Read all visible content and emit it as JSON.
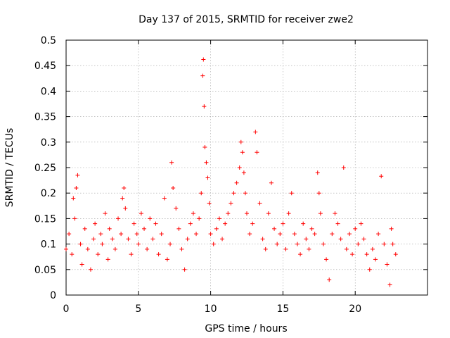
{
  "chart_data": {
    "type": "scatter",
    "title": "Day 137 of 2015, SRMTID for receiver zwe2",
    "xlabel": "GPS time / hours",
    "ylabel": "SRMTID / TECUs",
    "xlim": [
      0,
      25
    ],
    "ylim": [
      0,
      0.5
    ],
    "grid": true,
    "marker": "+",
    "color": "#ff0000",
    "x_ticks": [
      0,
      5,
      10,
      15,
      20
    ],
    "x_tick_labels": [
      "0",
      "5",
      "10",
      "15",
      "20"
    ],
    "y_ticks": [
      0,
      0.05,
      0.1,
      0.15,
      0.2,
      0.25,
      0.3,
      0.35,
      0.4,
      0.45,
      0.5
    ],
    "y_tick_labels": [
      "0",
      "0.05",
      "0.1",
      "0.15",
      "0.2",
      "0.25",
      "0.3",
      "0.35",
      "0.4",
      "0.45",
      "0.5"
    ],
    "series": [
      {
        "name": "SRMTID",
        "x": [
          0.0,
          0.2,
          0.4,
          0.5,
          0.6,
          0.7,
          0.8,
          1.0,
          1.1,
          1.3,
          1.5,
          1.7,
          1.9,
          2.0,
          2.2,
          2.4,
          2.5,
          2.7,
          2.9,
          3.0,
          3.2,
          3.4,
          3.6,
          3.8,
          3.9,
          4.0,
          4.1,
          4.3,
          4.5,
          4.7,
          4.9,
          5.0,
          5.2,
          5.4,
          5.6,
          5.8,
          6.0,
          6.2,
          6.4,
          6.6,
          6.8,
          7.0,
          7.2,
          7.3,
          7.4,
          7.6,
          7.8,
          8.0,
          8.2,
          8.4,
          8.6,
          8.8,
          9.0,
          9.2,
          9.35,
          9.45,
          9.5,
          9.55,
          9.6,
          9.7,
          9.8,
          9.9,
          10.0,
          10.2,
          10.4,
          10.6,
          10.8,
          11.0,
          11.2,
          11.4,
          11.6,
          11.8,
          12.0,
          12.1,
          12.2,
          12.3,
          12.4,
          12.5,
          12.7,
          12.9,
          13.1,
          13.2,
          13.4,
          13.6,
          13.8,
          14.0,
          14.2,
          14.4,
          14.6,
          14.8,
          15.0,
          15.2,
          15.4,
          15.6,
          15.8,
          16.0,
          16.2,
          16.4,
          16.6,
          16.8,
          17.0,
          17.2,
          17.4,
          17.5,
          17.6,
          17.8,
          18.0,
          18.2,
          18.4,
          18.6,
          18.8,
          19.0,
          19.2,
          19.4,
          19.6,
          19.8,
          20.0,
          20.2,
          20.4,
          20.6,
          20.8,
          21.0,
          21.2,
          21.4,
          21.6,
          21.8,
          22.0,
          22.2,
          22.4,
          22.5,
          22.6,
          22.8
        ],
        "y": [
          0.09,
          0.12,
          0.08,
          0.19,
          0.15,
          0.21,
          0.235,
          0.1,
          0.06,
          0.13,
          0.09,
          0.05,
          0.11,
          0.14,
          0.08,
          0.12,
          0.1,
          0.16,
          0.07,
          0.13,
          0.11,
          0.09,
          0.15,
          0.12,
          0.19,
          0.21,
          0.17,
          0.11,
          0.08,
          0.14,
          0.12,
          0.1,
          0.16,
          0.13,
          0.09,
          0.15,
          0.11,
          0.14,
          0.08,
          0.12,
          0.19,
          0.07,
          0.1,
          0.26,
          0.21,
          0.17,
          0.13,
          0.09,
          0.05,
          0.11,
          0.14,
          0.16,
          0.12,
          0.15,
          0.2,
          0.43,
          0.462,
          0.37,
          0.29,
          0.26,
          0.23,
          0.18,
          0.12,
          0.1,
          0.13,
          0.15,
          0.11,
          0.14,
          0.16,
          0.18,
          0.2,
          0.22,
          0.25,
          0.3,
          0.28,
          0.24,
          0.2,
          0.16,
          0.12,
          0.14,
          0.32,
          0.28,
          0.18,
          0.11,
          0.09,
          0.16,
          0.22,
          0.13,
          0.1,
          0.12,
          0.14,
          0.09,
          0.16,
          0.2,
          0.12,
          0.1,
          0.08,
          0.14,
          0.11,
          0.09,
          0.13,
          0.12,
          0.24,
          0.2,
          0.16,
          0.1,
          0.07,
          0.03,
          0.12,
          0.16,
          0.14,
          0.11,
          0.25,
          0.09,
          0.12,
          0.08,
          0.13,
          0.1,
          0.14,
          0.11,
          0.08,
          0.05,
          0.09,
          0.07,
          0.12,
          0.233,
          0.1,
          0.06,
          0.02,
          0.13,
          0.1,
          0.08
        ]
      }
    ]
  }
}
